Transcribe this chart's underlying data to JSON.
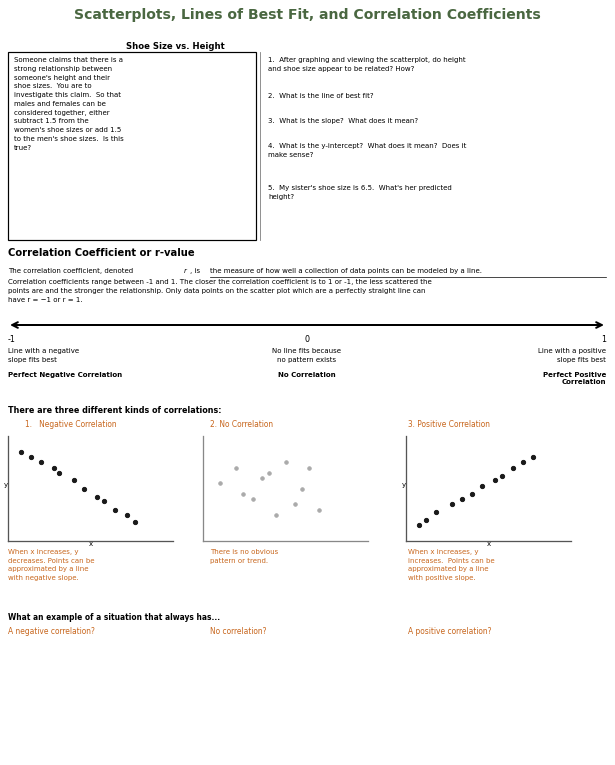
{
  "title": "Scatterplots, Lines of Best Fit, and Correlation Coefficients",
  "title_color": "#4a6741",
  "bg_color": "#ffffff",
  "section1_subtitle": "Shoe Size vs. Height",
  "box_text": "Someone claims that there is a\nstrong relationship between\nsomeone's height and their\nshoe sizes.  You are to\ninvestigate this claim.  So that\nmales and females can be\nconsidered together, either\nsubtract 1.5 from the\nwomen's shoe sizes or add 1.5\nto the men's shoe sizes.  Is this\ntrue?",
  "questions": [
    "1.  After graphing and viewing the scatterplot, do height\nand shoe size appear to be related? How?",
    "2.  What is the line of best fit?",
    "3.  What is the slope?  What does it mean?",
    "4.  What is the y-intercept?  What does it mean?  Does it\nmake sense?",
    "5.  My sister's shoe size is 6.5.  What's her predicted\nheight?"
  ],
  "section2_title": "Correlation Coefficient or r-value",
  "arrow_labels": [
    "-1",
    "0",
    "1"
  ],
  "neg1_text": "Line with a negative\nslope fits best",
  "neg1_bold": "Perfect Negative Correlation",
  "zero_text": "No line fits because\nno pattern exists",
  "zero_bold": "No Correlation",
  "pos1_text": "Line with a positive\nslope fits best",
  "pos1_bold": "Perfect Positive\nCorrelation",
  "three_kinds_title": "There are three different kinds of correlations:",
  "kind1": "1.   Negative Correlation",
  "kind2": "2. No Correlation",
  "kind3": "3. Positive Correlation",
  "desc1": "When x increases, y\ndecreases. Points can be\napproximated by a line\nwith negative slope.",
  "desc2": "There is no obvious\npattern or trend.",
  "desc3": "When x increases, y\nincreases.  Points can be\napproximated by a line\nwith positive slope.",
  "example_title": "What an example of a situation that always has...",
  "example1": "A negative correlation?",
  "example2": "No correlation?",
  "example3": "A positive correlation?",
  "orange_color": "#c8671e",
  "black_color": "#000000",
  "dot_color": "#1a1a1a",
  "gray_color": "#aaaaaa",
  "neg_dots_x": [
    0.5,
    0.9,
    1.3,
    1.8,
    2.0,
    2.6,
    3.0,
    3.5,
    3.8,
    4.2,
    4.7,
    5.0
  ],
  "neg_dots_y": [
    8.5,
    8.0,
    7.5,
    7.0,
    6.5,
    5.8,
    5.0,
    4.2,
    3.8,
    3.0,
    2.5,
    1.8
  ],
  "no_dots_x": [
    0.5,
    1.0,
    1.5,
    2.0,
    2.5,
    3.0,
    3.5,
    1.2,
    2.2,
    3.2,
    1.8,
    2.8
  ],
  "no_dots_y": [
    5.5,
    7.0,
    4.0,
    6.5,
    7.5,
    5.0,
    3.0,
    4.5,
    2.5,
    7.0,
    6.0,
    3.5
  ],
  "pos_dots_x": [
    0.5,
    0.8,
    1.2,
    1.8,
    2.2,
    2.6,
    3.0,
    3.5,
    3.8,
    4.2,
    4.6,
    5.0
  ],
  "pos_dots_y": [
    1.5,
    2.0,
    2.8,
    3.5,
    4.0,
    4.5,
    5.2,
    5.8,
    6.2,
    7.0,
    7.5,
    8.0
  ]
}
